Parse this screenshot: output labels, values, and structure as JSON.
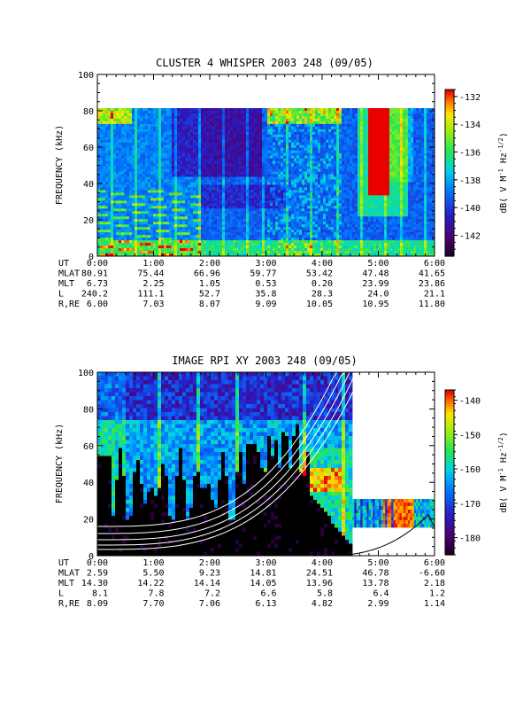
{
  "chart_data": [
    {
      "type": "heatmap",
      "title": "CLUSTER 4 WHISPER 2003 248 (09/05)",
      "ylabel": "FREQUENCY (kHz)",
      "xlim": [
        "0:00",
        "6:00"
      ],
      "ylim": [
        0,
        100
      ],
      "data_ymax": 80,
      "y_ticks": [
        "0",
        "20",
        "40",
        "60",
        "80",
        "100"
      ],
      "colorbar": {
        "label": "dB( V M",
        "label_sup1": "-1",
        "label_mid": " Hz",
        "label_sup2": "-1/2",
        "label_end": ")",
        "range": [
          -143.5,
          -131.5
        ],
        "ticks": [
          "-132",
          "-134",
          "-136",
          "-138",
          "-140",
          "-142"
        ]
      },
      "ephemeris": {
        "times": [
          "0:00",
          "1:00",
          "2:00",
          "3:00",
          "4:00",
          "5:00",
          "6:00"
        ],
        "rows": [
          {
            "label": "UT",
            "values": [
              "0:00",
              "1:00",
              "2:00",
              "3:00",
              "4:00",
              "5:00",
              "6:00"
            ]
          },
          {
            "label": "MLAT",
            "values": [
              "80.91",
              "75.44",
              "66.96",
              "59.77",
              "53.42",
              "47.48",
              "41.65"
            ]
          },
          {
            "label": "MLT",
            "values": [
              "6.73",
              "2.25",
              "1.05",
              "0.53",
              "0.20",
              "23.99",
              "23.86"
            ]
          },
          {
            "label": "L",
            "values": [
              "240.2",
              "111.1",
              "52.7",
              "35.8",
              "28.3",
              "24.0",
              "21.1"
            ]
          },
          {
            "label": "R,RE",
            "values": [
              "6.00",
              "7.03",
              "8.07",
              "9.09",
              "10.05",
              "10.95",
              "11.80"
            ]
          }
        ]
      }
    },
    {
      "type": "heatmap",
      "title": "IMAGE RPI XY 2003 248 (09/05)",
      "ylabel": "FREQUENCY (kHz)",
      "xlim": [
        "0:00",
        "6:00"
      ],
      "ylim": [
        0,
        100
      ],
      "y_ticks": [
        "0",
        "20",
        "40",
        "60",
        "80",
        "100"
      ],
      "colorbar": {
        "label": "dB( V M",
        "label_sup1": "-1",
        "label_mid": " Hz",
        "label_sup2": "-1/2",
        "label_end": ")",
        "range": [
          -185,
          -137
        ],
        "ticks": [
          "-140",
          "-150",
          "-160",
          "-170",
          "-180"
        ]
      },
      "ephemeris": {
        "rows": [
          {
            "label": "UT",
            "values": [
              "0:00",
              "1:00",
              "2:00",
              "3:00",
              "4:00",
              "5:00",
              "6:00"
            ]
          },
          {
            "label": "MLAT",
            "values": [
              "2.59",
              "5.50",
              "9.23",
              "14.81",
              "24.51",
              "46.78",
              "-6.60"
            ]
          },
          {
            "label": "MLT",
            "values": [
              "14.30",
              "14.22",
              "14.14",
              "14.05",
              "13.96",
              "13.78",
              "2.18"
            ]
          },
          {
            "label": "L",
            "values": [
              "8.1",
              "7.8",
              "7.2",
              "6.6",
              "5.8",
              "6.4",
              "1.2"
            ]
          },
          {
            "label": "R,RE",
            "values": [
              "8.09",
              "7.70",
              "7.06",
              "6.13",
              "4.82",
              "2.99",
              "1.14"
            ]
          }
        ]
      }
    }
  ]
}
